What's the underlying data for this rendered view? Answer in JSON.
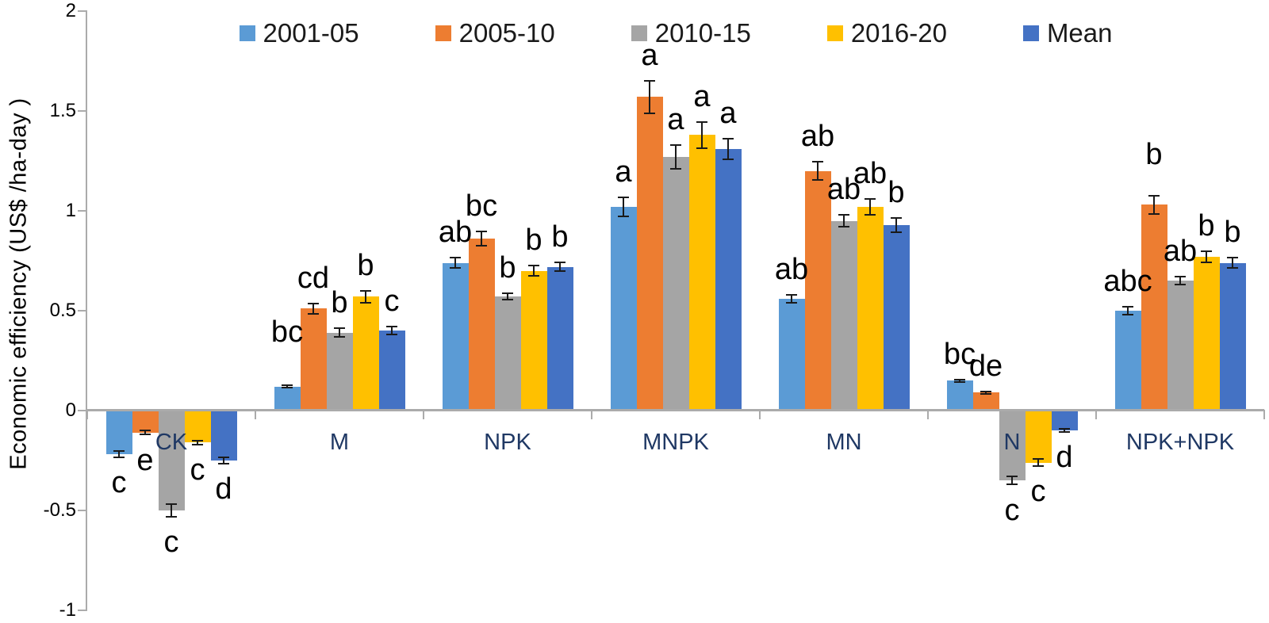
{
  "chart_data": {
    "type": "bar",
    "title": "",
    "xlabel": "",
    "ylabel": "Economic efficiency (US$ /ha-day )",
    "ylim": [
      -1,
      2
    ],
    "yticks": [
      2,
      1.5,
      1,
      0.5,
      0,
      -0.5,
      -1
    ],
    "ytick_labels": [
      "2",
      "1.5",
      "1",
      "0.5",
      "0",
      "-0.5",
      "-1"
    ],
    "grid": "off",
    "legend_position": "top-center",
    "error_bars": true,
    "categories": [
      "CK",
      "M",
      "NPK",
      "MNPK",
      "MN",
      "N",
      "NPK+NPK"
    ],
    "series": [
      {
        "name": "2001-05",
        "color": "#5B9BD5",
        "values": [
          -0.22,
          0.12,
          0.74,
          1.02,
          0.56,
          0.15,
          0.5
        ],
        "errors": [
          0.02,
          0.01,
          0.03,
          0.05,
          0.025,
          0.01,
          0.025
        ],
        "sig_letters": [
          "c",
          "bc",
          "ab",
          "a",
          "ab",
          "bc",
          "abc"
        ]
      },
      {
        "name": "2005-10",
        "color": "#ED7D31",
        "values": [
          -0.11,
          0.51,
          0.86,
          1.57,
          1.2,
          0.09,
          1.03
        ],
        "errors": [
          0.015,
          0.03,
          0.04,
          0.085,
          0.05,
          0.01,
          0.05
        ],
        "sig_letters": [
          "e",
          "cd",
          "bc",
          "a",
          "ab",
          "de",
          "b"
        ]
      },
      {
        "name": "2010-15",
        "color": "#A5A5A5",
        "values": [
          -0.5,
          0.39,
          0.57,
          1.27,
          0.95,
          -0.35,
          0.65
        ],
        "errors": [
          0.035,
          0.025,
          0.02,
          0.065,
          0.035,
          0.025,
          0.025
        ],
        "sig_letters": [
          "c",
          "b",
          "b",
          "a",
          "ab",
          "c",
          "ab"
        ]
      },
      {
        "name": "2016-20",
        "color": "#FFC000",
        "values": [
          -0.16,
          0.57,
          0.7,
          1.38,
          1.02,
          -0.26,
          0.77
        ],
        "errors": [
          0.015,
          0.035,
          0.03,
          0.07,
          0.045,
          0.02,
          0.03
        ],
        "sig_letters": [
          "c",
          "b",
          "b",
          "a",
          "ab",
          "c",
          "b"
        ]
      },
      {
        "name": "Mean",
        "color": "#4472C4",
        "values": [
          -0.25,
          0.4,
          0.72,
          1.31,
          0.93,
          -0.1,
          0.74
        ],
        "errors": [
          0.02,
          0.025,
          0.025,
          0.055,
          0.04,
          0.012,
          0.03
        ],
        "sig_letters": [
          "d",
          "c",
          "b",
          "a",
          "b",
          "d",
          "b"
        ]
      }
    ],
    "colors": {
      "axis_line": "#ABABAB",
      "category_label": "#1F3864",
      "sig_letter": "#000000",
      "tick_label": "#000000",
      "error_bar": "#1A1A1A"
    }
  }
}
